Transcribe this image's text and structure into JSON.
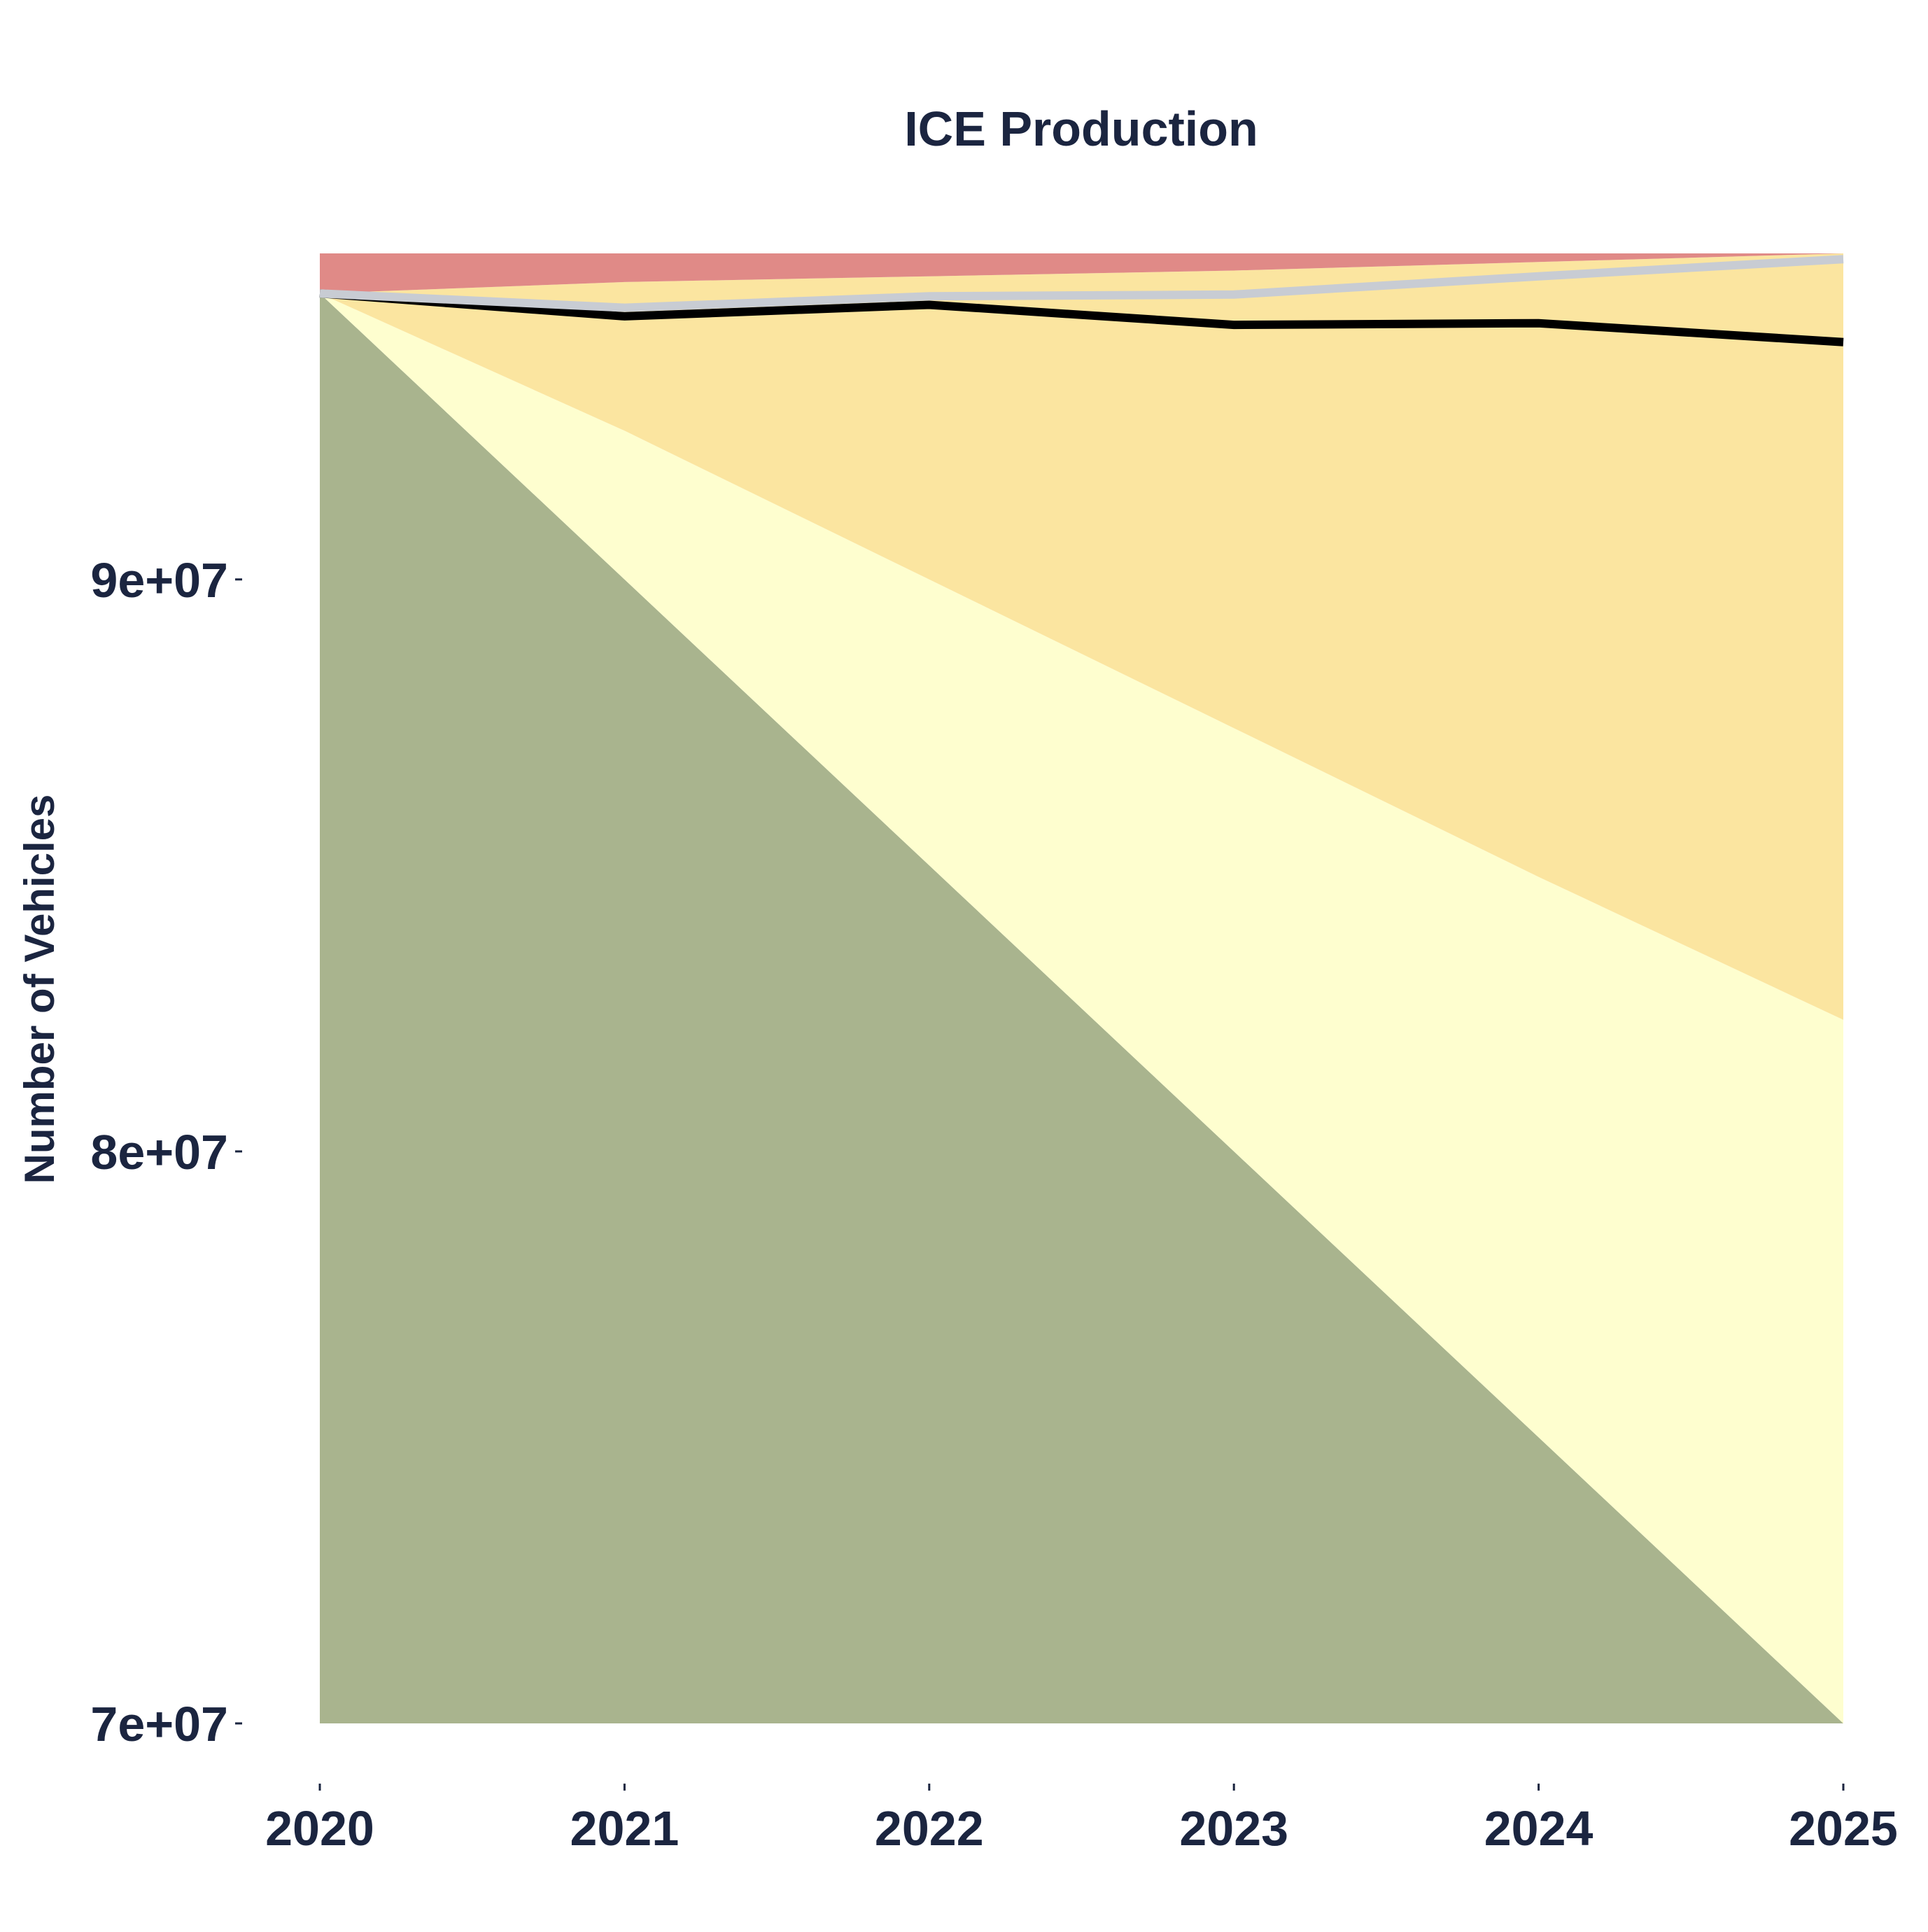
{
  "chart_data": {
    "type": "area",
    "title": "ICE Production",
    "xlabel": "",
    "ylabel": "Number of Vehicles",
    "x": [
      2020,
      2021,
      2022,
      2023,
      2024,
      2025
    ],
    "xticks": [
      2020,
      2021,
      2022,
      2023,
      2024,
      2025
    ],
    "xtick_labels": [
      "2020",
      "2021",
      "2022",
      "2023",
      "2024",
      "2025"
    ],
    "yticks": [
      70000000,
      80000000,
      90000000
    ],
    "ytick_labels": [
      "7e+07",
      "8e+07",
      "9e+07"
    ],
    "ylim": [
      70000000,
      95700000
    ],
    "xlim": [
      2020,
      2025
    ],
    "grid": false,
    "legend": "none",
    "bands": [
      {
        "color": "#a9b48e",
        "lower": [
          70000000,
          70000000,
          70000000,
          70000000,
          70000000,
          70000000
        ],
        "upper": [
          95000000,
          90000000,
          85000000,
          80000000,
          75000000,
          70000000
        ]
      },
      {
        "color": "#fefecf",
        "lower": [
          95000000,
          90000000,
          85000000,
          80000000,
          75000000,
          70000000
        ],
        "upper": [
          95000000,
          92600000,
          90000000,
          87400000,
          84800000,
          82300000
        ]
      },
      {
        "color": "#fbe5a0",
        "lower": [
          95000000,
          92600000,
          90000000,
          87400000,
          84800000,
          82300000
        ],
        "upper": [
          95000000,
          95200000,
          95300000,
          95400000,
          95550000,
          95700000
        ]
      },
      {
        "color": "#e08a87",
        "lower": [
          95000000,
          95200000,
          95300000,
          95400000,
          95550000,
          95700000
        ],
        "upper": [
          95700000,
          95700000,
          95700000,
          95700000,
          95700000,
          95700000
        ]
      }
    ],
    "lines": [
      {
        "color": "#000000",
        "values": [
          95000000,
          94600000,
          94800000,
          94450000,
          94480000,
          94150000
        ]
      },
      {
        "color": "#c8ccd3",
        "values": [
          95000000,
          94750000,
          94950000,
          94980000,
          95300000,
          95600000
        ]
      }
    ]
  }
}
